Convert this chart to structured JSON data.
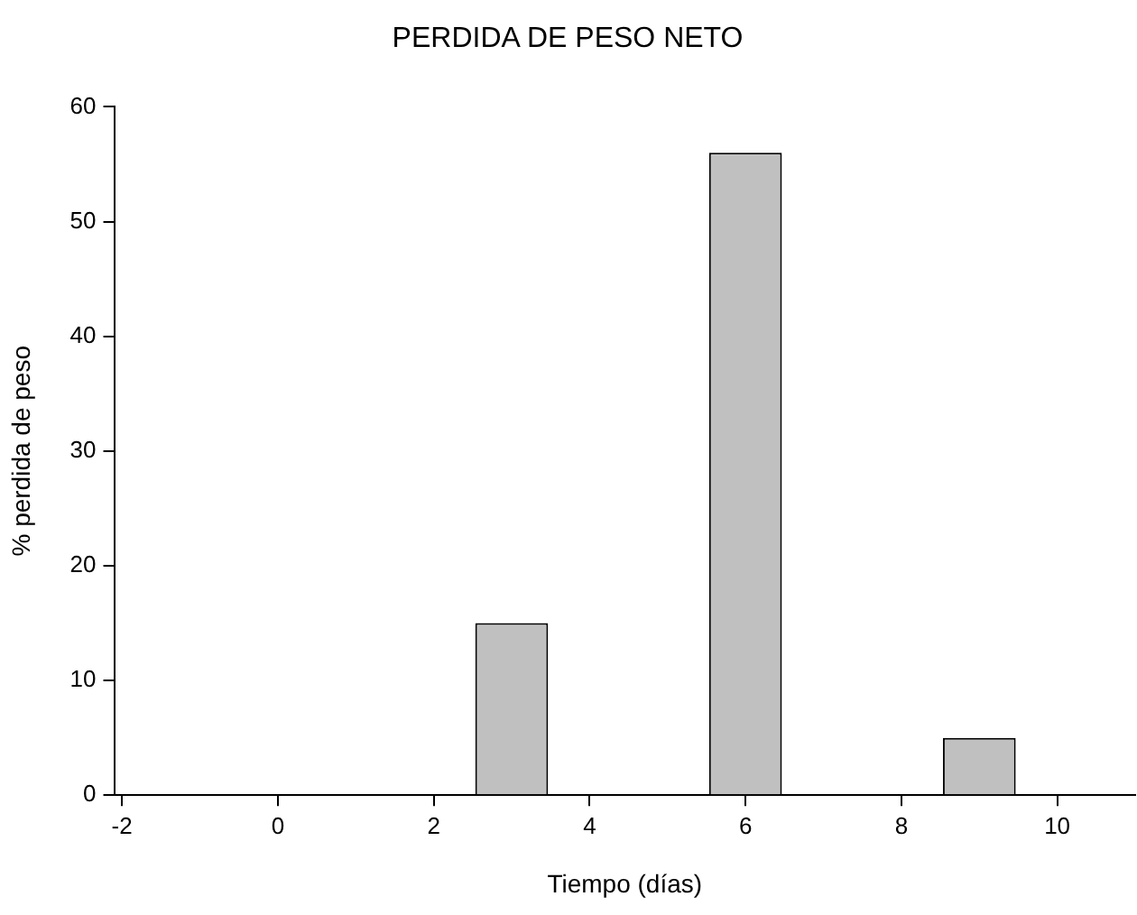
{
  "chart_data": {
    "type": "bar",
    "title": "PERDIDA DE PESO NETO",
    "xlabel": "Tiempo (días)",
    "ylabel": "% perdida de peso",
    "x": [
      3,
      6,
      9
    ],
    "values": [
      15,
      56,
      5
    ],
    "color": "#c0c0c0",
    "xlim": [
      -2.1,
      11
    ],
    "xticks": [
      -2,
      0,
      2,
      4,
      6,
      8,
      10
    ],
    "ylim": [
      0,
      60
    ],
    "yticks": [
      0,
      10,
      20,
      30,
      40,
      50,
      60
    ],
    "grid": false,
    "legend": false
  }
}
